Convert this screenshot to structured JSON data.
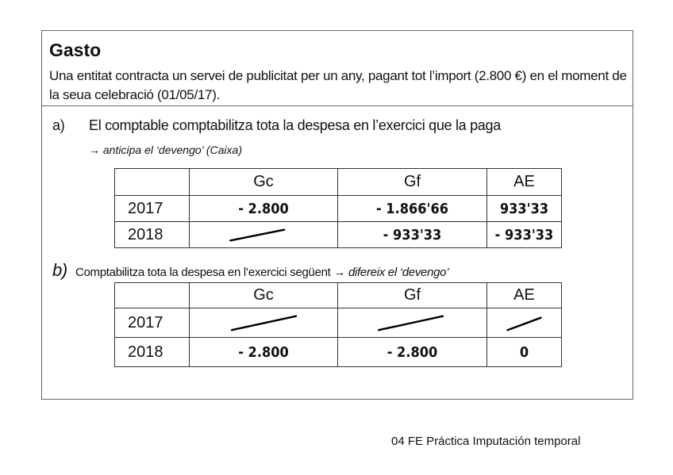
{
  "title": "Gasto",
  "intro": "Una entitat contracta un servei de publicitat per un any, pagant tot l’import (2.800 €) en el moment de la seua celebració (01/05/17).",
  "part_a": {
    "label": "a)",
    "text": "El comptable comptabilitza tota la despesa en l’exercici que la paga",
    "note": "→ anticipa el ‘devengo’ (Caixa)",
    "columns": [
      "",
      "Gc",
      "Gf",
      "AE"
    ],
    "rows": [
      {
        "year": "2017",
        "Gc": "- 2.800",
        "Gf": "- 1.866'66",
        "AE": "933'33"
      },
      {
        "year": "2018",
        "Gc": null,
        "Gf": "- 933'33",
        "AE": "- 933'33"
      }
    ]
  },
  "part_b": {
    "label": "b)",
    "text": "Comptabilitza tota la despesa en l’exercici següent →",
    "text_italic": "difereix el ‘devengo’",
    "columns": [
      "",
      "Gc",
      "Gf",
      "AE"
    ],
    "rows": [
      {
        "year": "2017",
        "Gc": null,
        "Gf": null,
        "AE": null
      },
      {
        "year": "2018",
        "Gc": "- 2.800",
        "Gf": "- 2.800",
        "AE": "0"
      }
    ]
  },
  "footer": "04 FE Práctica Imputación temporal"
}
